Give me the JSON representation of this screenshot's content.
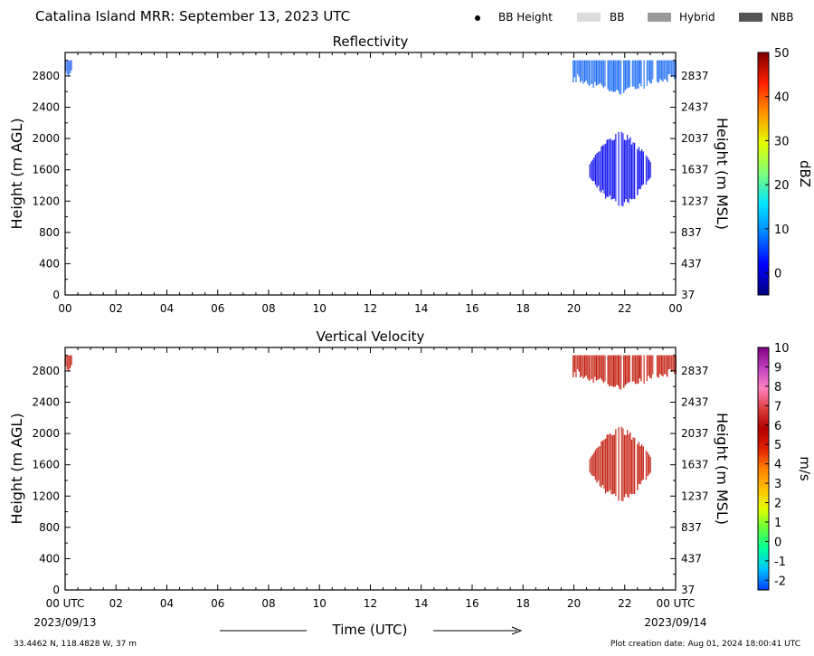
{
  "header": {
    "title": "Catalina Island MRR:  September 13, 2023 UTC",
    "legend": [
      {
        "label": "BB Height",
        "marker": "dot",
        "color": "#000000"
      },
      {
        "label": "BB",
        "marker": "swatch",
        "color": "#dcdcdc"
      },
      {
        "label": "Hybrid",
        "marker": "swatch",
        "color": "#999999"
      },
      {
        "label": "NBB",
        "marker": "swatch",
        "color": "#555555"
      }
    ]
  },
  "footer": {
    "location": "33.4462 N, 118.4828 W, 37 m",
    "creation_date": "Plot creation date: Aug 01, 2024 18:00:41 UTC",
    "time_label": "Time (UTC)",
    "start_date": "2023/09/13",
    "end_date": "2023/09/14"
  },
  "chart_data": [
    {
      "type": "heatmap",
      "title": "Reflectivity",
      "xlabel": "",
      "ylabel": "Height (m AGL)",
      "ylabel_right": "Height (m MSL)",
      "x_ticks": [
        "00",
        "02",
        "04",
        "06",
        "08",
        "10",
        "12",
        "14",
        "16",
        "18",
        "20",
        "22",
        "00"
      ],
      "xlim": [
        0,
        24
      ],
      "y_ticks": [
        0,
        400,
        800,
        1200,
        1600,
        2000,
        2400,
        2800
      ],
      "y_ticks_right": [
        37,
        437,
        837,
        1237,
        1637,
        2037,
        2437,
        2837
      ],
      "ylim": [
        0,
        3100
      ],
      "colorbar": {
        "label": "dBZ",
        "ticks": [
          0,
          10,
          20,
          30,
          40,
          50
        ],
        "range": [
          -5,
          50
        ],
        "colors": [
          "#00007f",
          "#0000ff",
          "#0080ff",
          "#00e5ff",
          "#7dff7a",
          "#e5ff00",
          "#ff9400",
          "#ff1e00",
          "#7f0000"
        ]
      },
      "echoes": [
        {
          "x": [
            0.0,
            0.25
          ],
          "height": [
            2700,
            3000
          ],
          "value": 3,
          "color": "#1e5cf0"
        },
        {
          "x": [
            19.95,
            24.0
          ],
          "height": [
            2400,
            3000
          ],
          "value": 2,
          "color": "#1466f5"
        },
        {
          "x": [
            20.6,
            23.0
          ],
          "height": [
            1100,
            2100
          ],
          "value": -2,
          "color": "#0000ee"
        }
      ]
    },
    {
      "type": "heatmap",
      "title": "Vertical Velocity",
      "xlabel": "Time (UTC)",
      "ylabel": "Height (m AGL)",
      "ylabel_right": "Height (m MSL)",
      "x_ticks": [
        "00 UTC",
        "02",
        "04",
        "06",
        "08",
        "10",
        "12",
        "14",
        "16",
        "18",
        "20",
        "22",
        "00 UTC"
      ],
      "xlim": [
        0,
        24
      ],
      "y_ticks": [
        0,
        400,
        800,
        1200,
        1600,
        2000,
        2400,
        2800
      ],
      "y_ticks_right": [
        37,
        437,
        837,
        1237,
        1637,
        2037,
        2437,
        2837
      ],
      "ylim": [
        0,
        3100
      ],
      "colorbar": {
        "label": "m/s",
        "ticks": [
          -2,
          -1,
          0,
          1,
          2,
          3,
          4,
          5,
          6,
          7,
          8,
          9,
          10
        ],
        "range": [
          -2.5,
          10
        ],
        "colors": [
          "#0040ff",
          "#00c0ff",
          "#00ffa0",
          "#60ff40",
          "#e0ff00",
          "#ffc000",
          "#ff8000",
          "#e02000",
          "#b00000",
          "#e04040",
          "#ff80c0",
          "#c040c0",
          "#800080"
        ]
      },
      "echoes": [
        {
          "x": [
            0.0,
            0.25
          ],
          "height": [
            2700,
            3000
          ],
          "value": 5.8,
          "color": "#c01000"
        },
        {
          "x": [
            19.95,
            24.0
          ],
          "height": [
            2400,
            3000
          ],
          "value": 5.8,
          "color": "#c01000"
        },
        {
          "x": [
            20.6,
            23.0
          ],
          "height": [
            1100,
            2100
          ],
          "value": 5.8,
          "color": "#c01000"
        }
      ]
    }
  ]
}
